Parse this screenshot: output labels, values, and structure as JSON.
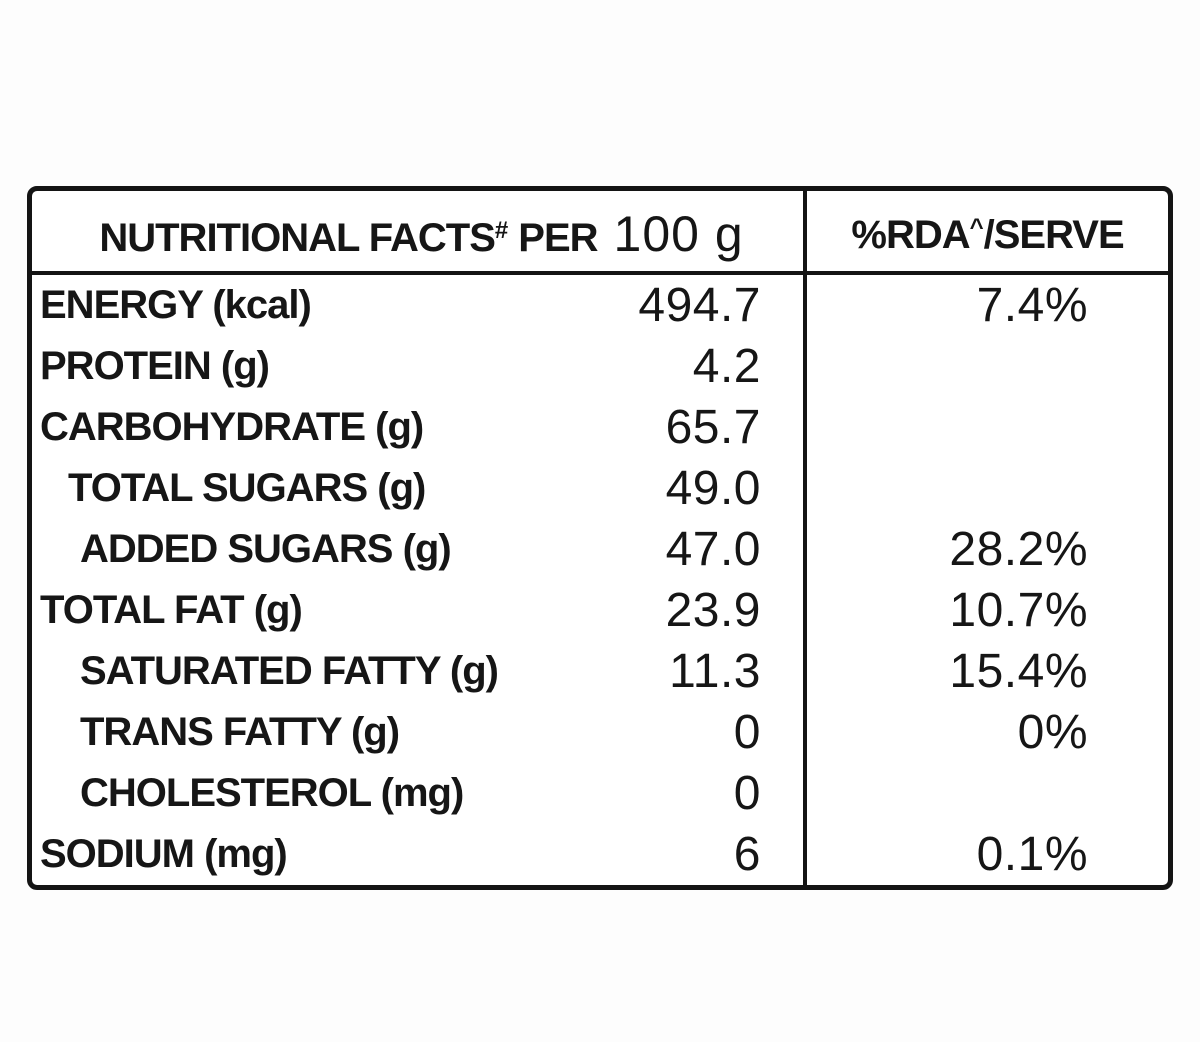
{
  "colors": {
    "text": "#161616",
    "border": "#141414",
    "table_background": "#ffffff",
    "page_background": "#fdfdfd"
  },
  "table": {
    "header": {
      "title": "NUTRITIONAL FACTS",
      "hash_mark": "#",
      "per_label": "PER",
      "serving_size": "100 g",
      "rda_prefix": "%RDA",
      "caret_mark": "^",
      "rda_suffix": "/SERVE"
    },
    "rows": [
      {
        "label": "ENERGY (kcal)",
        "value": "494.7",
        "rda": "7.4%",
        "level": 0
      },
      {
        "label": "PROTEIN (g)",
        "value": "4.2",
        "rda": "",
        "level": 0
      },
      {
        "label": "CARBOHYDRATE (g)",
        "value": "65.7",
        "rda": "",
        "level": 0
      },
      {
        "label": "TOTAL SUGARS (g)",
        "value": "49.0",
        "rda": "",
        "level": 1
      },
      {
        "label": "ADDED SUGARS (g)",
        "value": "47.0",
        "rda": "28.2%",
        "level": 2
      },
      {
        "label": "TOTAL FAT (g)",
        "value": "23.9",
        "rda": "10.7%",
        "level": 0
      },
      {
        "label": "SATURATED FATTY (g)",
        "value": "11.3",
        "rda": "15.4%",
        "level": 2
      },
      {
        "label": "TRANS FATTY (g)",
        "value": "0",
        "rda": "0%",
        "level": 2
      },
      {
        "label": "CHOLESTEROL (mg)",
        "value": "0",
        "rda": "",
        "level": 2
      },
      {
        "label": "SODIUM (mg)",
        "value": "6",
        "rda": "0.1%",
        "level": 0
      }
    ]
  }
}
